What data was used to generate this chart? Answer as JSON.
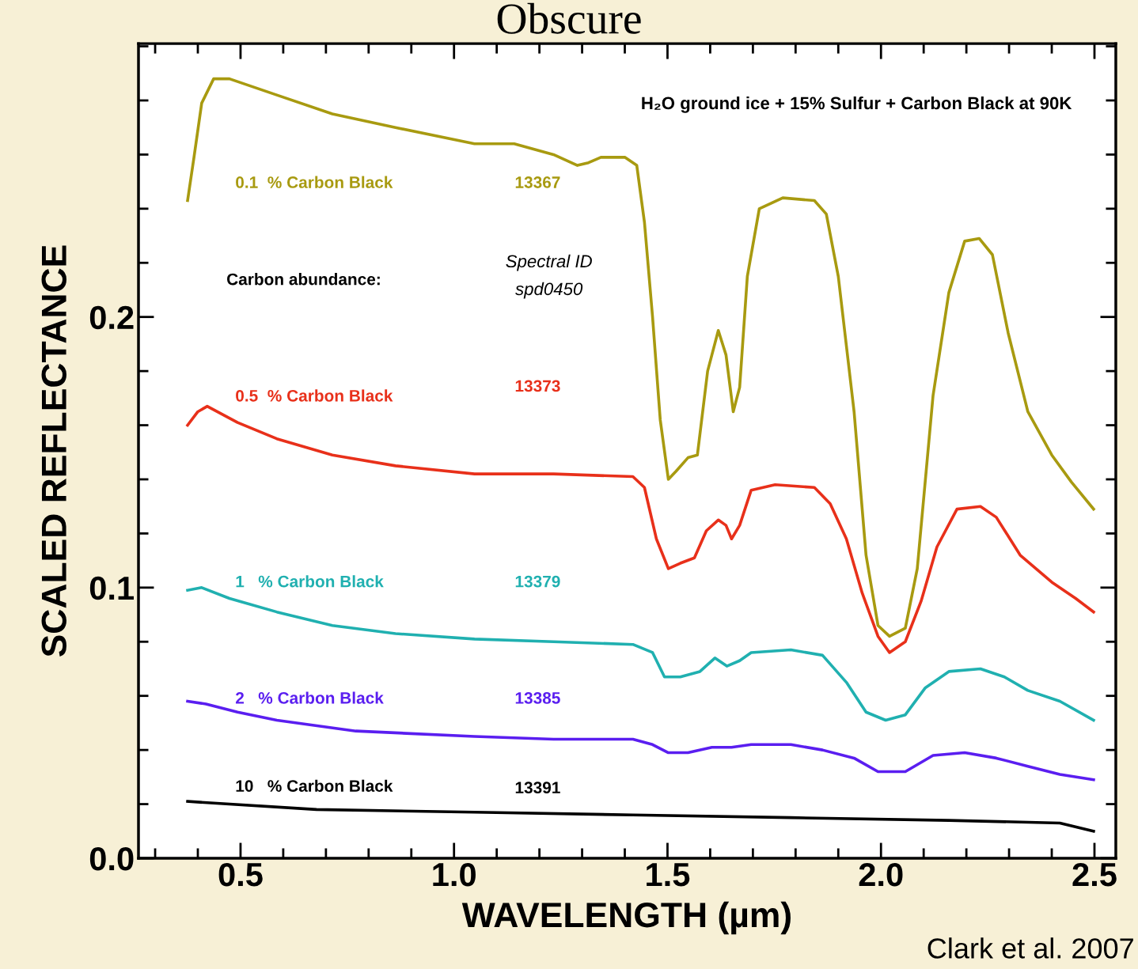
{
  "chart_data": {
    "type": "line",
    "title": "Obscure",
    "xlabel": "WAVELENGTH (µm)",
    "ylabel": "SCALED REFLECTANCE",
    "xlim": [
      0.261,
      2.55
    ],
    "ylim": [
      0,
      0.301
    ],
    "xticks": [
      {
        "value": 0.3,
        "label": null
      },
      {
        "value": 0.4,
        "label": null
      },
      0.5,
      {
        "value": 0.6,
        "label": null
      },
      {
        "value": 0.7,
        "label": null
      },
      {
        "value": 0.8,
        "label": null
      },
      {
        "value": 0.9,
        "label": null
      },
      {
        "value": 1.0,
        "label": "1.0"
      },
      {
        "value": 1.1,
        "label": null
      },
      {
        "value": 1.2,
        "label": null
      },
      {
        "value": 1.3,
        "label": null
      },
      {
        "value": 1.4,
        "label": null
      },
      1.5,
      {
        "value": 1.6,
        "label": null
      },
      {
        "value": 1.7,
        "label": null
      },
      {
        "value": 1.8,
        "label": null
      },
      {
        "value": 1.9,
        "label": null
      },
      {
        "value": 2.0,
        "label": "2.0"
      },
      {
        "value": 2.1,
        "label": null
      },
      {
        "value": 2.2,
        "label": null
      },
      {
        "value": 2.3,
        "label": null
      },
      {
        "value": 2.4,
        "label": null
      },
      2.5
    ],
    "yticks": [
      {
        "value": 0,
        "label": "0.0"
      },
      {
        "value": 0.02,
        "label": null
      },
      {
        "value": 0.04,
        "label": null
      },
      {
        "value": 0.06,
        "label": null
      },
      {
        "value": 0.08,
        "label": null
      },
      0.1,
      {
        "value": 0.12,
        "label": null
      },
      {
        "value": 0.14,
        "label": null
      },
      {
        "value": 0.16,
        "label": null
      },
      {
        "value": 0.18,
        "label": null
      },
      0.2,
      {
        "value": 0.22,
        "label": null
      },
      {
        "value": 0.24,
        "label": null
      },
      {
        "value": 0.26,
        "label": null
      },
      {
        "value": 0.28,
        "label": null
      },
      {
        "value": 0.3,
        "label": null
      }
    ],
    "grid": false,
    "legend": false,
    "marker": "none",
    "line_style": "solid",
    "series": [
      {
        "name": "0.1  % Carbon Black",
        "color": "#a89a10",
        "x": [
          0.376,
          0.391,
          0.409,
          0.437,
          0.474,
          0.585,
          0.715,
          0.863,
          1.048,
          1.141,
          1.233,
          1.289,
          1.315,
          1.344,
          1.4,
          1.428,
          1.446,
          1.465,
          1.483,
          1.502,
          1.52,
          1.548,
          1.57,
          1.594,
          1.619,
          1.637,
          1.654,
          1.669,
          1.687,
          1.715,
          1.77,
          1.844,
          1.872,
          1.9,
          1.937,
          1.965,
          1.993,
          2.02,
          2.057,
          2.085,
          2.122,
          2.159,
          2.196,
          2.23,
          2.261,
          2.298,
          2.344,
          2.4,
          2.446,
          2.498
        ],
        "values": [
          0.243,
          0.259,
          0.279,
          0.288,
          0.288,
          0.282,
          0.275,
          0.27,
          0.264,
          0.264,
          0.26,
          0.256,
          0.257,
          0.259,
          0.259,
          0.256,
          0.235,
          0.2,
          0.162,
          0.14,
          0.143,
          0.148,
          0.149,
          0.18,
          0.195,
          0.186,
          0.165,
          0.174,
          0.215,
          0.24,
          0.244,
          0.243,
          0.238,
          0.215,
          0.165,
          0.112,
          0.086,
          0.082,
          0.085,
          0.107,
          0.171,
          0.209,
          0.228,
          0.229,
          0.223,
          0.194,
          0.165,
          0.149,
          0.139,
          0.129
        ]
      },
      {
        "name": "0.5  % Carbon Black",
        "color": "#e8301a",
        "x": [
          0.376,
          0.4,
          0.422,
          0.493,
          0.585,
          0.715,
          0.863,
          1.048,
          1.233,
          1.419,
          1.446,
          1.474,
          1.502,
          1.53,
          1.563,
          1.591,
          1.619,
          1.637,
          1.65,
          1.669,
          1.696,
          1.752,
          1.844,
          1.881,
          1.919,
          1.956,
          1.993,
          2.02,
          2.057,
          2.094,
          2.131,
          2.178,
          2.233,
          2.27,
          2.326,
          2.4,
          2.456,
          2.498
        ],
        "values": [
          0.16,
          0.165,
          0.167,
          0.161,
          0.155,
          0.149,
          0.145,
          0.142,
          0.142,
          0.141,
          0.137,
          0.118,
          0.107,
          0.109,
          0.111,
          0.121,
          0.125,
          0.123,
          0.118,
          0.123,
          0.136,
          0.138,
          0.137,
          0.131,
          0.118,
          0.098,
          0.082,
          0.076,
          0.08,
          0.095,
          0.115,
          0.129,
          0.13,
          0.126,
          0.112,
          0.102,
          0.096,
          0.091
        ]
      },
      {
        "name": "1   % Carbon Black",
        "color": "#20b0b0",
        "x": [
          0.376,
          0.409,
          0.474,
          0.585,
          0.715,
          0.863,
          1.048,
          1.233,
          1.419,
          1.465,
          1.493,
          1.53,
          1.576,
          1.611,
          1.639,
          1.669,
          1.696,
          1.789,
          1.863,
          1.919,
          1.965,
          2.011,
          2.057,
          2.104,
          2.159,
          2.233,
          2.289,
          2.344,
          2.419,
          2.498
        ],
        "values": [
          0.099,
          0.1,
          0.096,
          0.091,
          0.086,
          0.083,
          0.081,
          0.08,
          0.079,
          0.076,
          0.067,
          0.067,
          0.069,
          0.074,
          0.071,
          0.073,
          0.076,
          0.077,
          0.075,
          0.065,
          0.054,
          0.051,
          0.053,
          0.063,
          0.069,
          0.07,
          0.067,
          0.062,
          0.058,
          0.051
        ]
      },
      {
        "name": "2   % Carbon Black",
        "color": "#5a1ef0",
        "x": [
          0.376,
          0.419,
          0.493,
          0.585,
          0.77,
          1.048,
          1.233,
          1.419,
          1.465,
          1.502,
          1.548,
          1.604,
          1.65,
          1.696,
          1.789,
          1.863,
          1.937,
          1.993,
          2.057,
          2.122,
          2.196,
          2.27,
          2.344,
          2.419,
          2.498
        ],
        "values": [
          0.058,
          0.057,
          0.054,
          0.051,
          0.047,
          0.045,
          0.044,
          0.044,
          0.042,
          0.039,
          0.039,
          0.041,
          0.041,
          0.042,
          0.042,
          0.04,
          0.037,
          0.032,
          0.032,
          0.038,
          0.039,
          0.037,
          0.034,
          0.031,
          0.029
        ]
      },
      {
        "name": "10   % Carbon Black",
        "color": "#000000",
        "x": [
          0.376,
          0.678,
          1.048,
          1.419,
          1.789,
          2.159,
          2.419,
          2.498
        ],
        "values": [
          0.021,
          0.018,
          0.017,
          0.016,
          0.015,
          0.014,
          0.013,
          0.01
        ]
      }
    ],
    "annotations": [
      "H₂O ground ice + 15% Sulfur + Carbon Black at 90K",
      "Carbon abundance:",
      "Spectral ID",
      "spd0450",
      "13367",
      "13373",
      "13379",
      "13385",
      "13391",
      "Clark et al. 2007"
    ]
  }
}
